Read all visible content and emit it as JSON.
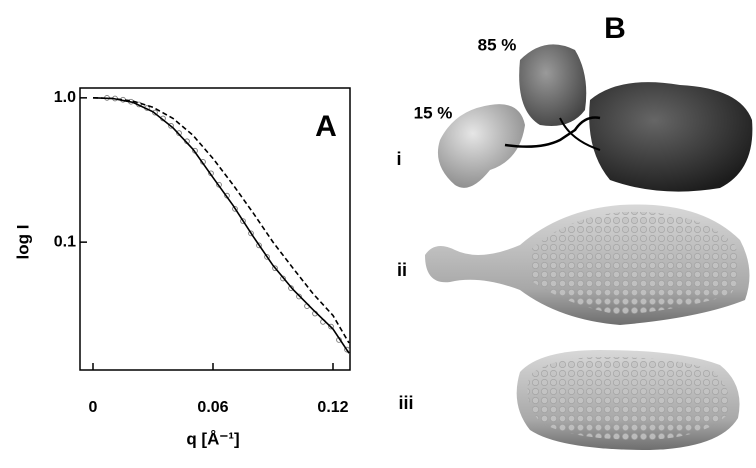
{
  "chart_data": {
    "type": "line",
    "panel_label": "A",
    "x_label": "q [Å⁻¹]",
    "y_label": "log I",
    "xlim": [
      -0.0065,
      0.1285
    ],
    "xticks": [
      0,
      0.06,
      0.12
    ],
    "ylim": [
      0.013,
      1.17
    ],
    "yticks": [
      {
        "value": 1,
        "label": "1.0"
      },
      0.1
    ],
    "log_y": true,
    "series": [
      {
        "kind": "scatter",
        "color": "#777777",
        "x": [
          0.007,
          0.011,
          0.015,
          0.019,
          0.023,
          0.027,
          0.031,
          0.035,
          0.039,
          0.043,
          0.047,
          0.051,
          0.055,
          0.059,
          0.063,
          0.067,
          0.071,
          0.075,
          0.079,
          0.083,
          0.087,
          0.091,
          0.095,
          0.099,
          0.103,
          0.107,
          0.111,
          0.115,
          0.119,
          0.123,
          0.127
        ],
        "values": [
          1.0,
          0.99,
          0.97,
          0.94,
          0.9,
          0.85,
          0.79,
          0.72,
          0.64,
          0.57,
          0.5,
          0.43,
          0.36,
          0.3,
          0.25,
          0.21,
          0.17,
          0.14,
          0.115,
          0.095,
          0.079,
          0.066,
          0.056,
          0.048,
          0.042,
          0.036,
          0.032,
          0.028,
          0.026,
          0.021,
          0.018
        ]
      },
      {
        "kind": "solid",
        "color": "#000000",
        "x": [
          0,
          0.01,
          0.02,
          0.03,
          0.04,
          0.05,
          0.06,
          0.07,
          0.08,
          0.09,
          0.1,
          0.11,
          0.12,
          0.128
        ],
        "values": [
          1.0,
          0.99,
          0.93,
          0.8,
          0.62,
          0.44,
          0.28,
          0.18,
          0.11,
          0.069,
          0.047,
          0.034,
          0.025,
          0.017
        ]
      },
      {
        "kind": "dashed",
        "color": "#000000",
        "x": [
          0,
          0.01,
          0.02,
          0.03,
          0.04,
          0.05,
          0.06,
          0.07,
          0.08,
          0.09,
          0.1,
          0.11,
          0.12,
          0.128
        ],
        "values": [
          1.0,
          0.99,
          0.95,
          0.86,
          0.72,
          0.55,
          0.38,
          0.25,
          0.16,
          0.1,
          0.066,
          0.044,
          0.031,
          0.02
        ]
      }
    ]
  },
  "panel_b": {
    "panel_label": "B",
    "label_85": "85 %",
    "label_15": "15 %",
    "row_labels": [
      "i",
      "ii",
      "iii"
    ]
  }
}
